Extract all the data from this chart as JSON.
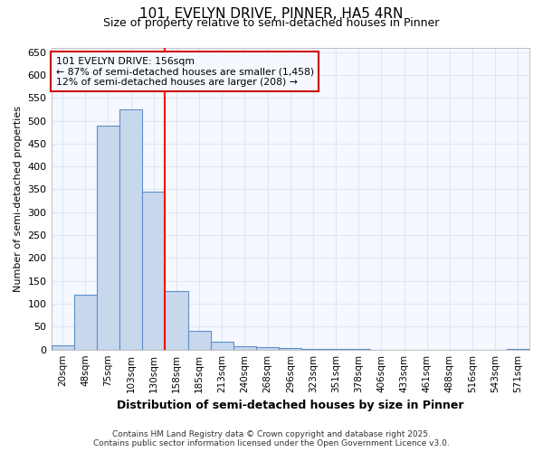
{
  "title": "101, EVELYN DRIVE, PINNER, HA5 4RN",
  "subtitle": "Size of property relative to semi-detached houses in Pinner",
  "xlabel": "Distribution of semi-detached houses by size in Pinner",
  "ylabel": "Number of semi-detached properties",
  "categories": [
    "20sqm",
    "48sqm",
    "75sqm",
    "103sqm",
    "130sqm",
    "158sqm",
    "185sqm",
    "213sqm",
    "240sqm",
    "268sqm",
    "296sqm",
    "323sqm",
    "351sqm",
    "378sqm",
    "406sqm",
    "433sqm",
    "461sqm",
    "488sqm",
    "516sqm",
    "543sqm",
    "571sqm"
  ],
  "values": [
    10,
    120,
    490,
    525,
    345,
    128,
    40,
    18,
    8,
    5,
    3,
    2,
    1,
    1,
    0,
    0,
    0,
    0,
    0,
    0,
    2
  ],
  "bar_color": "#c8d8ec",
  "bar_edge_color": "#5b8fc9",
  "ylim": [
    0,
    660
  ],
  "yticks": [
    0,
    50,
    100,
    150,
    200,
    250,
    300,
    350,
    400,
    450,
    500,
    550,
    600,
    650
  ],
  "redline_index": 5,
  "annotation_line1": "101 EVELYN DRIVE: 156sqm",
  "annotation_line2": "← 87% of semi-detached houses are smaller (1,458)",
  "annotation_line3": "12% of semi-detached houses are larger (208) →",
  "annotation_box_color": "#cc0000",
  "footer_line1": "Contains HM Land Registry data © Crown copyright and database right 2025.",
  "footer_line2": "Contains public sector information licensed under the Open Government Licence v3.0.",
  "background_color": "#f5f8ff",
  "grid_color": "#dde8f5",
  "fig_bg_color": "#ffffff"
}
